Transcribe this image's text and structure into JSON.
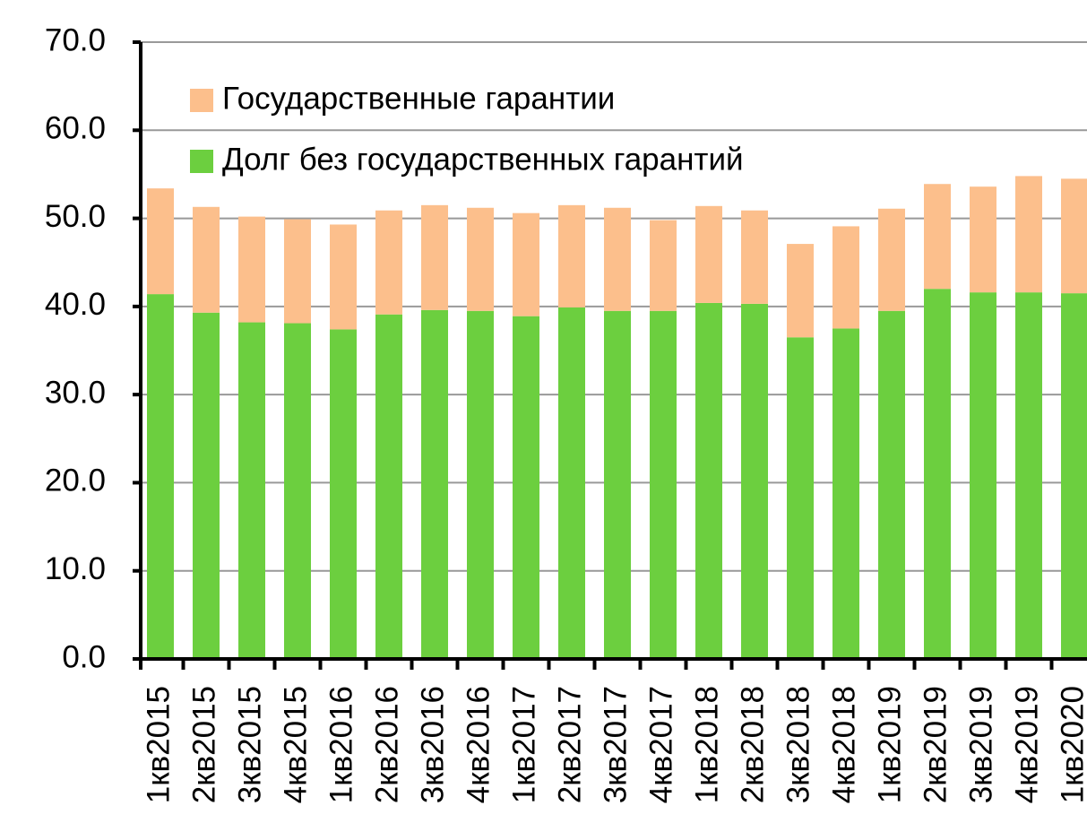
{
  "chart_data": {
    "type": "stacked_bar",
    "categories": [
      "1кв2015",
      "2кв2015",
      "3кв2015",
      "4кв2015",
      "1кв2016",
      "2кв2016",
      "3кв2016",
      "4кв2016",
      "1кв2017",
      "2кв2017",
      "3кв2017",
      "4кв2017",
      "1кв2018",
      "2кв2018",
      "3кв2018",
      "4кв2018",
      "1кв2019",
      "2кв2019",
      "3кв2019",
      "4кв2019",
      "1кв2020"
    ],
    "series": [
      {
        "name": "Долг без государственных гарантий",
        "color": "#6ccf3f",
        "values": [
          41.4,
          39.3,
          38.2,
          38.1,
          37.4,
          39.1,
          39.6,
          39.5,
          38.9,
          39.9,
          39.5,
          39.5,
          40.4,
          40.3,
          36.5,
          37.5,
          39.5,
          42.0,
          41.6,
          41.6,
          41.5
        ]
      },
      {
        "name": "Государственные гарантии",
        "color": "#fcbf8c",
        "values": [
          12.0,
          12.0,
          12.0,
          11.8,
          11.9,
          11.8,
          11.9,
          11.7,
          11.7,
          11.6,
          11.7,
          10.3,
          11.0,
          10.6,
          10.6,
          11.6,
          11.6,
          11.9,
          12.0,
          13.2,
          13.0
        ]
      }
    ],
    "ylim": [
      0,
      70
    ],
    "yticks": [
      {
        "value": 0,
        "label": "0.0"
      },
      {
        "value": 10,
        "label": "10.0"
      },
      {
        "value": 20,
        "label": "20.0"
      },
      {
        "value": 30,
        "label": "30.0"
      },
      {
        "value": 40,
        "label": "40.0"
      },
      {
        "value": 50,
        "label": "50.0"
      },
      {
        "value": 60,
        "label": "60.0"
      },
      {
        "value": 70,
        "label": "70.0"
      }
    ],
    "grid": true
  }
}
